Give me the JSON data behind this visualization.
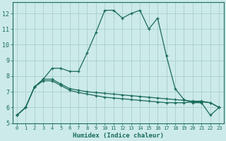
{
  "title": "",
  "xlabel": "Humidex (Indice chaleur)",
  "xlim": [
    -0.5,
    23.5
  ],
  "ylim": [
    5,
    12.7
  ],
  "yticks": [
    5,
    6,
    7,
    8,
    9,
    10,
    11,
    12
  ],
  "xticks": [
    0,
    1,
    2,
    3,
    4,
    5,
    6,
    7,
    8,
    9,
    10,
    11,
    12,
    13,
    14,
    15,
    16,
    17,
    18,
    19,
    20,
    21,
    22,
    23
  ],
  "bg_color": "#cceaea",
  "grid_color": "#aacece",
  "line_color": "#1a6b5a",
  "x": [
    0,
    1,
    2,
    3,
    4,
    5,
    6,
    7,
    8,
    9,
    10,
    11,
    12,
    13,
    14,
    15,
    16,
    17,
    18,
    19,
    20,
    21,
    22,
    23
  ],
  "series1": [
    5.5,
    6.0,
    7.3,
    7.8,
    8.5,
    8.5,
    8.3,
    8.3,
    9.5,
    10.8,
    12.2,
    12.2,
    11.7,
    12.0,
    12.2,
    11.0,
    11.7,
    9.3,
    7.2,
    6.5,
    6.3,
    6.3,
    5.5,
    6.0
  ],
  "series2": [
    5.5,
    6.0,
    7.3,
    7.8,
    7.8,
    7.5,
    7.2,
    7.1,
    7.0,
    6.95,
    6.9,
    6.85,
    6.8,
    6.75,
    6.7,
    6.65,
    6.6,
    6.55,
    6.5,
    6.45,
    6.4,
    6.4,
    6.3,
    6.0
  ],
  "series3": [
    5.5,
    6.0,
    7.3,
    7.7,
    7.7,
    7.4,
    7.1,
    6.95,
    6.85,
    6.75,
    6.65,
    6.6,
    6.55,
    6.5,
    6.45,
    6.4,
    6.35,
    6.3,
    6.3,
    6.3,
    6.35,
    6.35,
    6.3,
    6.0
  ]
}
